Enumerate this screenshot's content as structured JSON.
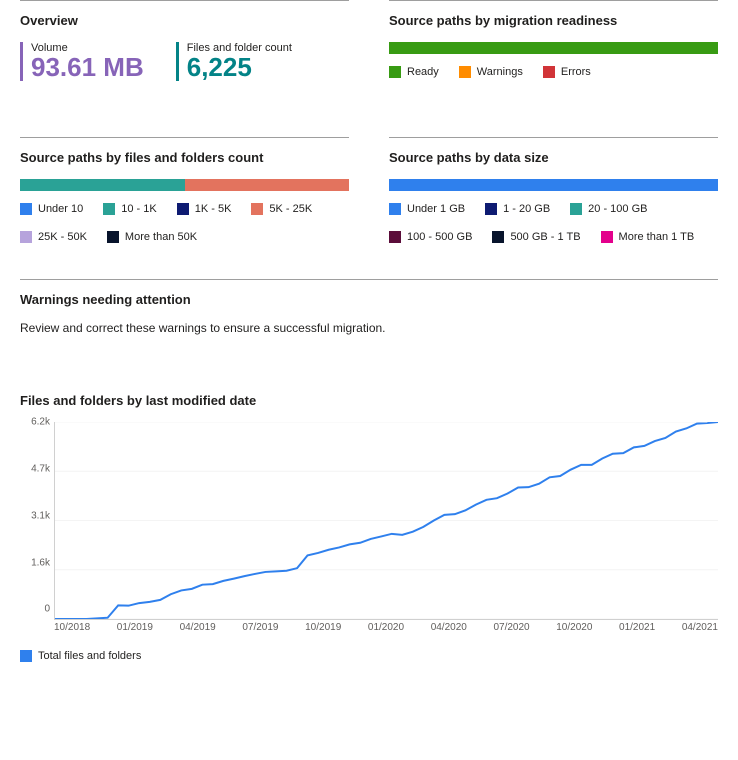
{
  "overview": {
    "title": "Overview",
    "volume_label": "Volume",
    "volume_value": "93.61 MB",
    "volume_color": "#8764b8",
    "count_label": "Files and folder count",
    "count_value": "6,225",
    "count_color": "#038387"
  },
  "readiness": {
    "title": "Source paths by migration readiness",
    "bar": {
      "type": "bar",
      "segments": [
        {
          "color": "#389b13",
          "pct": 100
        }
      ]
    },
    "legend": [
      {
        "label": "Ready",
        "color": "#389b13"
      },
      {
        "label": "Warnings",
        "color": "#ff8c00"
      },
      {
        "label": "Errors",
        "color": "#d13438"
      }
    ]
  },
  "by_count": {
    "title": "Source paths by files and folders count",
    "bar": {
      "type": "bar",
      "segments": [
        {
          "color": "#2aa296",
          "pct": 50
        },
        {
          "color": "#e3735e",
          "pct": 50
        }
      ]
    },
    "legend": [
      {
        "label": "Under 10",
        "color": "#2f80ed"
      },
      {
        "label": "10 - 1K",
        "color": "#2aa296"
      },
      {
        "label": "1K - 5K",
        "color": "#0e1b72"
      },
      {
        "label": "5K - 25K",
        "color": "#e3735e"
      },
      {
        "label": "25K - 50K",
        "color": "#b6a3dc"
      },
      {
        "label": "More than 50K",
        "color": "#08142c"
      }
    ]
  },
  "by_size": {
    "title": "Source paths by data size",
    "bar": {
      "type": "bar",
      "segments": [
        {
          "color": "#2f80ed",
          "pct": 100
        }
      ]
    },
    "legend": [
      {
        "label": "Under 1 GB",
        "color": "#2f80ed"
      },
      {
        "label": "1 - 20 GB",
        "color": "#0e1b72"
      },
      {
        "label": "20 - 100 GB",
        "color": "#2aa296"
      },
      {
        "label": "100 - 500 GB",
        "color": "#5b0d3a"
      },
      {
        "label": "500 GB - 1 TB",
        "color": "#08142c"
      },
      {
        "label": "More than 1 TB",
        "color": "#e3008c"
      }
    ]
  },
  "warnings": {
    "title": "Warnings needing attention",
    "subtext": "Review and correct these warnings to ensure a successful migration."
  },
  "timeline": {
    "title": "Files and folders by last modified date",
    "type": "line",
    "y_labels": [
      "6.2k",
      "4.7k",
      "3.1k",
      "1.6k",
      "0"
    ],
    "ymax": 6200,
    "x_labels": [
      "10/2018",
      "01/2019",
      "04/2019",
      "07/2019",
      "10/2019",
      "01/2020",
      "04/2020",
      "07/2020",
      "10/2020",
      "01/2021",
      "04/2021"
    ],
    "line_color": "#2f80ed",
    "points": [
      [
        0,
        0
      ],
      [
        1,
        0
      ],
      [
        2,
        0
      ],
      [
        3,
        0
      ],
      [
        4,
        20
      ],
      [
        5,
        40
      ],
      [
        6,
        430
      ],
      [
        7,
        420
      ],
      [
        8,
        500
      ],
      [
        9,
        540
      ],
      [
        10,
        600
      ],
      [
        11,
        780
      ],
      [
        12,
        900
      ],
      [
        13,
        950
      ],
      [
        14,
        1080
      ],
      [
        15,
        1100
      ],
      [
        16,
        1200
      ],
      [
        17,
        1270
      ],
      [
        18,
        1350
      ],
      [
        19,
        1420
      ],
      [
        20,
        1480
      ],
      [
        21,
        1500
      ],
      [
        22,
        1520
      ],
      [
        23,
        1600
      ],
      [
        24,
        2000
      ],
      [
        25,
        2080
      ],
      [
        26,
        2180
      ],
      [
        27,
        2250
      ],
      [
        28,
        2350
      ],
      [
        29,
        2400
      ],
      [
        30,
        2520
      ],
      [
        31,
        2600
      ],
      [
        32,
        2680
      ],
      [
        33,
        2650
      ],
      [
        34,
        2750
      ],
      [
        35,
        2900
      ],
      [
        36,
        3100
      ],
      [
        37,
        3280
      ],
      [
        38,
        3300
      ],
      [
        39,
        3420
      ],
      [
        40,
        3600
      ],
      [
        41,
        3750
      ],
      [
        42,
        3800
      ],
      [
        43,
        3950
      ],
      [
        44,
        4140
      ],
      [
        45,
        4150
      ],
      [
        46,
        4260
      ],
      [
        47,
        4460
      ],
      [
        48,
        4500
      ],
      [
        49,
        4700
      ],
      [
        50,
        4850
      ],
      [
        51,
        4850
      ],
      [
        52,
        5050
      ],
      [
        53,
        5200
      ],
      [
        54,
        5220
      ],
      [
        55,
        5400
      ],
      [
        56,
        5450
      ],
      [
        57,
        5600
      ],
      [
        58,
        5700
      ],
      [
        59,
        5900
      ],
      [
        60,
        6000
      ],
      [
        61,
        6150
      ],
      [
        62,
        6170
      ],
      [
        63,
        6200
      ]
    ],
    "legend_label": "Total files and folders"
  }
}
